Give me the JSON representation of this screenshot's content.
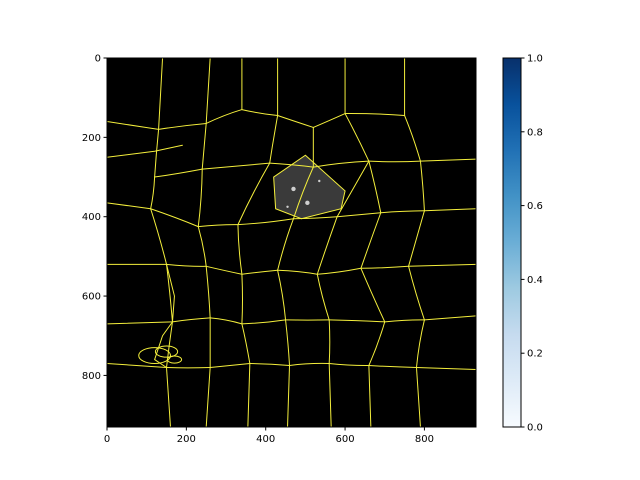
{
  "chart_data": {
    "type": "heatmap",
    "title": "",
    "xlabel": "",
    "ylabel": "",
    "xlim": [
      0,
      930
    ],
    "ylim": [
      930,
      0
    ],
    "x_ticks": [
      0,
      200,
      400,
      600,
      800
    ],
    "y_ticks": [
      0,
      200,
      400,
      600,
      800
    ],
    "image": {
      "background_color": "#000000",
      "edge_color": "#f4ef3c",
      "highlight_polygon": [
        [
          420,
          300
        ],
        [
          500,
          245
        ],
        [
          600,
          335
        ],
        [
          590,
          380
        ],
        [
          490,
          405
        ],
        [
          425,
          380
        ]
      ],
      "highlight_color": "#3a3a3a",
      "cell_vertices": [
        [
          130,
          180
        ],
        [
          250,
          165
        ],
        [
          340,
          130
        ],
        [
          430,
          145
        ],
        [
          520,
          175
        ],
        [
          600,
          140
        ],
        [
          750,
          145
        ],
        [
          120,
          300
        ],
        [
          240,
          280
        ],
        [
          410,
          265
        ],
        [
          520,
          275
        ],
        [
          660,
          260
        ],
        [
          790,
          260
        ],
        [
          110,
          380
        ],
        [
          230,
          425
        ],
        [
          330,
          420
        ],
        [
          470,
          405
        ],
        [
          580,
          400
        ],
        [
          690,
          390
        ],
        [
          800,
          385
        ],
        [
          150,
          520
        ],
        [
          250,
          525
        ],
        [
          340,
          545
        ],
        [
          430,
          535
        ],
        [
          530,
          545
        ],
        [
          640,
          530
        ],
        [
          760,
          525
        ],
        [
          165,
          665
        ],
        [
          260,
          655
        ],
        [
          340,
          670
        ],
        [
          450,
          660
        ],
        [
          560,
          660
        ],
        [
          700,
          665
        ],
        [
          800,
          660
        ],
        [
          150,
          780
        ],
        [
          260,
          780
        ],
        [
          360,
          770
        ],
        [
          460,
          775
        ],
        [
          560,
          770
        ],
        [
          660,
          775
        ],
        [
          780,
          780
        ]
      ],
      "cell_edges": [
        [
          0,
          1
        ],
        [
          1,
          2
        ],
        [
          2,
          3
        ],
        [
          3,
          4
        ],
        [
          4,
          5
        ],
        [
          5,
          6
        ],
        [
          0,
          7
        ],
        [
          1,
          8
        ],
        [
          3,
          9
        ],
        [
          4,
          10
        ],
        [
          5,
          11
        ],
        [
          6,
          12
        ],
        [
          7,
          8
        ],
        [
          8,
          9
        ],
        [
          9,
          10
        ],
        [
          10,
          11
        ],
        [
          11,
          12
        ],
        [
          7,
          13
        ],
        [
          8,
          14
        ],
        [
          9,
          15
        ],
        [
          10,
          16
        ],
        [
          11,
          17
        ],
        [
          11,
          18
        ],
        [
          12,
          19
        ],
        [
          13,
          14
        ],
        [
          14,
          15
        ],
        [
          15,
          16
        ],
        [
          16,
          17
        ],
        [
          17,
          18
        ],
        [
          18,
          19
        ],
        [
          13,
          20
        ],
        [
          14,
          21
        ],
        [
          15,
          22
        ],
        [
          16,
          23
        ],
        [
          17,
          24
        ],
        [
          18,
          25
        ],
        [
          19,
          26
        ],
        [
          20,
          21
        ],
        [
          21,
          22
        ],
        [
          22,
          23
        ],
        [
          23,
          24
        ],
        [
          24,
          25
        ],
        [
          25,
          26
        ],
        [
          20,
          27
        ],
        [
          21,
          28
        ],
        [
          22,
          29
        ],
        [
          23,
          30
        ],
        [
          24,
          31
        ],
        [
          25,
          32
        ],
        [
          26,
          33
        ],
        [
          27,
          28
        ],
        [
          28,
          29
        ],
        [
          29,
          30
        ],
        [
          30,
          31
        ],
        [
          31,
          32
        ],
        [
          32,
          33
        ],
        [
          27,
          34
        ],
        [
          28,
          35
        ],
        [
          29,
          36
        ],
        [
          30,
          37
        ],
        [
          31,
          38
        ],
        [
          32,
          39
        ],
        [
          33,
          40
        ],
        [
          34,
          35
        ],
        [
          35,
          36
        ],
        [
          36,
          37
        ],
        [
          37,
          38
        ],
        [
          38,
          39
        ],
        [
          39,
          40
        ]
      ],
      "border_edges": [
        [
          [
            0,
            160
          ],
          [
            130,
            180
          ]
        ],
        [
          [
            0,
            250
          ],
          [
            120,
            235
          ],
          [
            190,
            220
          ]
        ],
        [
          [
            0,
            365
          ],
          [
            110,
            380
          ]
        ],
        [
          [
            0,
            520
          ],
          [
            150,
            520
          ]
        ],
        [
          [
            0,
            670
          ],
          [
            165,
            665
          ]
        ],
        [
          [
            0,
            770
          ],
          [
            150,
            780
          ]
        ],
        [
          [
            140,
            0
          ],
          [
            130,
            180
          ]
        ],
        [
          [
            260,
            0
          ],
          [
            250,
            165
          ]
        ],
        [
          [
            340,
            0
          ],
          [
            340,
            130
          ]
        ],
        [
          [
            430,
            0
          ],
          [
            430,
            145
          ]
        ],
        [
          [
            600,
            0
          ],
          [
            600,
            140
          ]
        ],
        [
          [
            750,
            0
          ],
          [
            750,
            145
          ]
        ],
        [
          [
            790,
            260
          ],
          [
            930,
            255
          ]
        ],
        [
          [
            800,
            385
          ],
          [
            930,
            380
          ]
        ],
        [
          [
            760,
            525
          ],
          [
            930,
            520
          ]
        ],
        [
          [
            800,
            660
          ],
          [
            930,
            650
          ]
        ],
        [
          [
            780,
            780
          ],
          [
            930,
            785
          ]
        ],
        [
          [
            150,
            780
          ],
          [
            160,
            930
          ]
        ],
        [
          [
            260,
            780
          ],
          [
            250,
            930
          ]
        ],
        [
          [
            360,
            770
          ],
          [
            355,
            930
          ]
        ],
        [
          [
            460,
            775
          ],
          [
            455,
            930
          ]
        ],
        [
          [
            560,
            770
          ],
          [
            565,
            930
          ]
        ],
        [
          [
            660,
            775
          ],
          [
            665,
            930
          ]
        ],
        [
          [
            780,
            780
          ],
          [
            790,
            930
          ]
        ],
        [
          [
            165,
            665
          ],
          [
            140,
            700
          ],
          [
            120,
            760
          ],
          [
            150,
            780
          ]
        ],
        [
          [
            150,
            520
          ],
          [
            170,
            600
          ],
          [
            165,
            665
          ]
        ]
      ]
    },
    "colorbar": {
      "colormap": "Blues",
      "min": 0.0,
      "max": 1.0,
      "ticks": [
        0.0,
        0.2,
        0.4,
        0.6,
        0.8,
        1.0
      ],
      "tick_labels": [
        "0.0",
        "0.2",
        "0.4",
        "0.6",
        "0.8",
        "1.0"
      ]
    }
  }
}
